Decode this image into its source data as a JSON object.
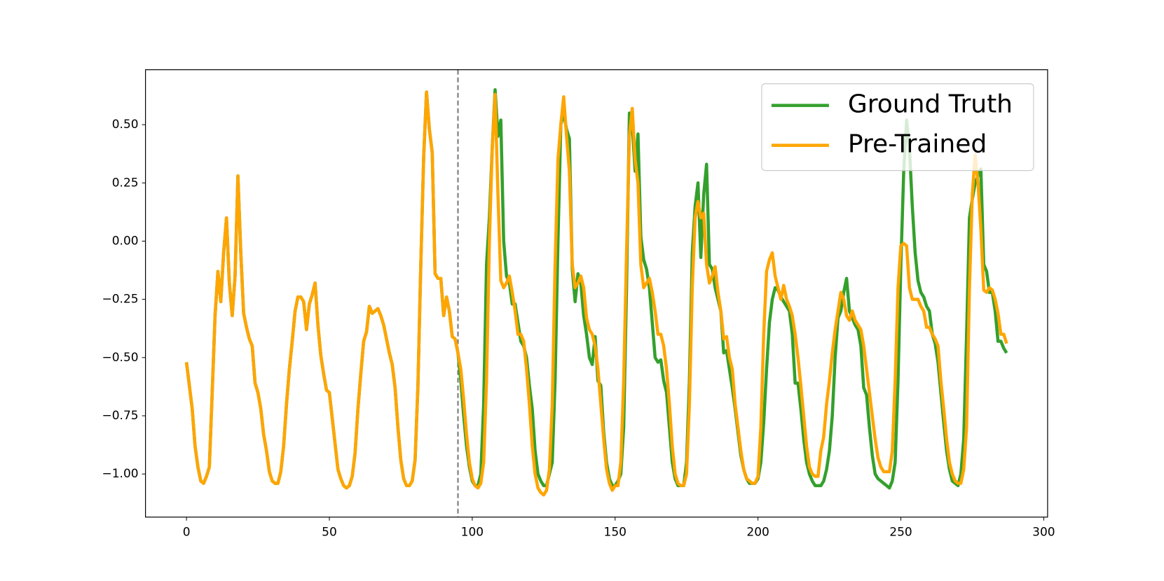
{
  "chart_data": {
    "type": "line",
    "x": [
      0,
      1,
      2,
      3,
      4,
      5,
      6,
      7,
      8,
      9,
      10,
      11,
      12,
      13,
      14,
      15,
      16,
      17,
      18,
      19,
      20,
      21,
      22,
      23,
      24,
      25,
      26,
      27,
      28,
      29,
      30,
      31,
      32,
      33,
      34,
      35,
      36,
      37,
      38,
      39,
      40,
      41,
      42,
      43,
      44,
      45,
      46,
      47,
      48,
      49,
      50,
      51,
      52,
      53,
      54,
      55,
      56,
      57,
      58,
      59,
      60,
      61,
      62,
      63,
      64,
      65,
      66,
      67,
      68,
      69,
      70,
      71,
      72,
      73,
      74,
      75,
      76,
      77,
      78,
      79,
      80,
      81,
      82,
      83,
      84,
      85,
      86,
      87,
      88,
      89,
      90,
      91,
      92,
      93,
      94,
      95,
      96,
      97,
      98,
      99,
      100,
      101,
      102,
      103,
      104,
      105,
      106,
      107,
      108,
      109,
      110,
      111,
      112,
      113,
      114,
      115,
      116,
      117,
      118,
      119,
      120,
      121,
      122,
      123,
      124,
      125,
      126,
      127,
      128,
      129,
      130,
      131,
      132,
      133,
      134,
      135,
      136,
      137,
      138,
      139,
      140,
      141,
      142,
      143,
      144,
      145,
      146,
      147,
      148,
      149,
      150,
      151,
      152,
      153,
      154,
      155,
      156,
      157,
      158,
      159,
      160,
      161,
      162,
      163,
      164,
      165,
      166,
      167,
      168,
      169,
      170,
      171,
      172,
      173,
      174,
      175,
      176,
      177,
      178,
      179,
      180,
      181,
      182,
      183,
      184,
      185,
      186,
      187,
      188,
      189,
      190,
      191,
      192,
      193,
      194,
      195,
      196,
      197,
      198,
      199,
      200,
      201,
      202,
      203,
      204,
      205,
      206,
      207,
      208,
      209,
      210,
      211,
      212,
      213,
      214,
      215,
      216,
      217,
      218,
      219,
      220,
      221,
      222,
      223,
      224,
      225,
      226,
      227,
      228,
      229,
      230,
      231,
      232,
      233,
      234,
      235,
      236,
      237,
      238,
      239,
      240,
      241,
      242,
      243,
      244,
      245,
      246,
      247,
      248,
      249,
      250,
      251,
      252,
      253,
      254,
      255,
      256,
      257,
      258,
      259,
      260,
      261,
      262,
      263,
      264,
      265,
      266,
      267,
      268,
      269,
      270,
      271,
      272,
      273,
      274,
      275,
      276,
      277,
      278,
      279,
      280,
      281,
      282,
      283,
      284,
      285,
      286,
      287
    ],
    "series": [
      {
        "name": "Ground Truth",
        "color": "#33a02c",
        "values": [
          -0.52,
          -0.62,
          -0.72,
          -0.88,
          -0.97,
          -1.03,
          -1.04,
          -1.01,
          -0.97,
          -0.65,
          -0.32,
          -0.13,
          -0.26,
          -0.05,
          0.1,
          -0.18,
          -0.32,
          -0.15,
          0.28,
          -0.05,
          -0.31,
          -0.37,
          -0.42,
          -0.45,
          -0.61,
          -0.65,
          -0.72,
          -0.83,
          -0.9,
          -0.99,
          -1.03,
          -1.04,
          -1.04,
          -0.99,
          -0.88,
          -0.7,
          -0.55,
          -0.43,
          -0.3,
          -0.24,
          -0.24,
          -0.26,
          -0.38,
          -0.27,
          -0.23,
          -0.18,
          -0.36,
          -0.49,
          -0.57,
          -0.64,
          -0.65,
          -0.76,
          -0.87,
          -0.98,
          -1.02,
          -1.05,
          -1.06,
          -1.05,
          -1.01,
          -0.91,
          -0.72,
          -0.57,
          -0.43,
          -0.39,
          -0.28,
          -0.31,
          -0.3,
          -0.29,
          -0.32,
          -0.36,
          -0.42,
          -0.48,
          -0.53,
          -0.63,
          -0.8,
          -0.94,
          -1.02,
          -1.05,
          -1.05,
          -1.03,
          -0.94,
          -0.62,
          -0.1,
          0.36,
          0.64,
          0.48,
          0.38,
          -0.14,
          -0.16,
          -0.16,
          -0.32,
          -0.24,
          -0.3,
          -0.41,
          -0.42,
          -0.48,
          -0.6,
          -0.75,
          -0.88,
          -0.97,
          -1.03,
          -1.05,
          -1.05,
          -1.0,
          -0.7,
          -0.1,
          0.1,
          0.4,
          0.65,
          0.45,
          0.52,
          0.0,
          -0.15,
          -0.18,
          -0.27,
          -0.27,
          -0.35,
          -0.43,
          -0.45,
          -0.5,
          -0.62,
          -0.72,
          -0.9,
          -1.0,
          -1.03,
          -1.05,
          -1.05,
          -1.0,
          -0.95,
          -0.6,
          0.0,
          0.5,
          0.55,
          0.48,
          0.44,
          -0.12,
          -0.26,
          -0.14,
          -0.18,
          -0.32,
          -0.4,
          -0.5,
          -0.53,
          -0.41,
          -0.6,
          -0.62,
          -0.82,
          -0.95,
          -1.02,
          -1.05,
          -1.05,
          -1.03,
          -1.0,
          -0.8,
          -0.2,
          0.55,
          0.5,
          0.3,
          0.46,
          0.02,
          -0.08,
          -0.12,
          -0.2,
          -0.35,
          -0.5,
          -0.52,
          -0.51,
          -0.6,
          -0.65,
          -0.8,
          -0.95,
          -1.02,
          -1.05,
          -1.05,
          -1.05,
          -0.95,
          -0.6,
          -0.05,
          0.15,
          0.25,
          -0.07,
          0.2,
          0.33,
          -0.1,
          -0.12,
          -0.2,
          -0.25,
          -0.3,
          -0.48,
          -0.47,
          -0.55,
          -0.63,
          -0.72,
          -0.82,
          -0.92,
          -0.98,
          -1.02,
          -1.04,
          -1.04,
          -1.04,
          -1.02,
          -0.95,
          -0.78,
          -0.55,
          -0.35,
          -0.25,
          -0.2,
          -0.21,
          -0.24,
          -0.26,
          -0.28,
          -0.3,
          -0.4,
          -0.61,
          -0.61,
          -0.72,
          -0.85,
          -0.95,
          -1.0,
          -1.03,
          -1.05,
          -1.05,
          -1.05,
          -1.03,
          -0.98,
          -0.9,
          -0.75,
          -0.5,
          -0.33,
          -0.3,
          -0.22,
          -0.16,
          -0.3,
          -0.33,
          -0.36,
          -0.38,
          -0.45,
          -0.63,
          -0.66,
          -0.8,
          -0.92,
          -1.0,
          -1.02,
          -1.03,
          -1.04,
          -1.05,
          -1.06,
          -1.03,
          -0.95,
          -0.6,
          -0.1,
          0.3,
          0.52,
          0.4,
          0.15,
          -0.05,
          -0.17,
          -0.22,
          -0.24,
          -0.28,
          -0.3,
          -0.4,
          -0.44,
          -0.52,
          -0.65,
          -0.78,
          -0.9,
          -0.98,
          -1.03,
          -1.04,
          -1.05,
          -1.0,
          -0.85,
          -0.4,
          0.1,
          0.18,
          0.25,
          0.28,
          0.31,
          -0.1,
          -0.13,
          -0.22,
          -0.22,
          -0.3,
          -0.43,
          -0.43,
          -0.46,
          -0.48
        ]
      },
      {
        "name": "Pre-Trained",
        "color": "#ffa500",
        "values": [
          -0.52,
          -0.62,
          -0.72,
          -0.88,
          -0.97,
          -1.03,
          -1.04,
          -1.01,
          -0.97,
          -0.65,
          -0.32,
          -0.13,
          -0.26,
          -0.05,
          0.1,
          -0.18,
          -0.32,
          -0.15,
          0.28,
          -0.05,
          -0.31,
          -0.37,
          -0.42,
          -0.45,
          -0.61,
          -0.65,
          -0.72,
          -0.83,
          -0.9,
          -0.99,
          -1.03,
          -1.04,
          -1.04,
          -0.99,
          -0.88,
          -0.7,
          -0.55,
          -0.43,
          -0.3,
          -0.24,
          -0.24,
          -0.26,
          -0.38,
          -0.27,
          -0.23,
          -0.18,
          -0.36,
          -0.49,
          -0.57,
          -0.64,
          -0.65,
          -0.76,
          -0.87,
          -0.98,
          -1.02,
          -1.05,
          -1.06,
          -1.05,
          -1.01,
          -0.91,
          -0.72,
          -0.57,
          -0.43,
          -0.39,
          -0.28,
          -0.31,
          -0.3,
          -0.29,
          -0.32,
          -0.36,
          -0.42,
          -0.48,
          -0.53,
          -0.63,
          -0.8,
          -0.94,
          -1.02,
          -1.05,
          -1.05,
          -1.03,
          -0.94,
          -0.62,
          -0.1,
          0.36,
          0.64,
          0.48,
          0.38,
          -0.14,
          -0.16,
          -0.16,
          -0.32,
          -0.24,
          -0.3,
          -0.41,
          -0.42,
          -0.48,
          -0.55,
          -0.68,
          -0.83,
          -0.95,
          -1.02,
          -1.05,
          -1.06,
          -1.04,
          -0.95,
          -0.6,
          0.0,
          0.4,
          0.63,
          0.2,
          -0.17,
          -0.2,
          -0.18,
          -0.15,
          -0.22,
          -0.3,
          -0.4,
          -0.4,
          -0.43,
          -0.55,
          -0.7,
          -0.88,
          -1.0,
          -1.06,
          -1.08,
          -1.09,
          -1.07,
          -0.98,
          -0.7,
          -0.1,
          0.35,
          0.5,
          0.62,
          0.45,
          0.3,
          -0.1,
          -0.2,
          -0.18,
          -0.15,
          -0.2,
          -0.33,
          -0.38,
          -0.4,
          -0.45,
          -0.55,
          -0.7,
          -0.85,
          -0.98,
          -1.04,
          -1.07,
          -1.05,
          -1.05,
          -0.95,
          -0.6,
          -0.05,
          0.45,
          0.57,
          0.35,
          0.25,
          -0.1,
          -0.2,
          -0.18,
          -0.16,
          -0.22,
          -0.3,
          -0.4,
          -0.4,
          -0.45,
          -0.55,
          -0.7,
          -0.88,
          -1.0,
          -1.04,
          -1.05,
          -1.05,
          -1.0,
          -0.7,
          -0.2,
          0.1,
          0.17,
          0.1,
          0.12,
          -0.1,
          -0.18,
          -0.15,
          -0.11,
          -0.22,
          -0.3,
          -0.42,
          -0.41,
          -0.5,
          -0.55,
          -0.7,
          -0.8,
          -0.9,
          -0.98,
          -1.02,
          -1.03,
          -1.04,
          -1.04,
          -1.01,
          -0.8,
          -0.4,
          -0.13,
          -0.08,
          -0.05,
          -0.15,
          -0.2,
          -0.25,
          -0.19,
          -0.25,
          -0.28,
          -0.32,
          -0.4,
          -0.5,
          -0.62,
          -0.75,
          -0.88,
          -0.97,
          -1.0,
          -1.01,
          -1.01,
          -0.9,
          -0.84,
          -0.7,
          -0.6,
          -0.48,
          -0.38,
          -0.3,
          -0.22,
          -0.25,
          -0.32,
          -0.34,
          -0.3,
          -0.34,
          -0.36,
          -0.38,
          -0.45,
          -0.55,
          -0.65,
          -0.75,
          -0.85,
          -0.93,
          -0.97,
          -0.99,
          -0.99,
          -0.99,
          -0.9,
          -0.6,
          -0.2,
          -0.02,
          -0.01,
          -0.02,
          -0.2,
          -0.25,
          -0.25,
          -0.25,
          -0.28,
          -0.3,
          -0.37,
          -0.37,
          -0.4,
          -0.42,
          -0.45,
          -0.6,
          -0.72,
          -0.85,
          -0.95,
          -1.0,
          -1.03,
          -1.04,
          -1.04,
          -0.98,
          -0.8,
          -0.2,
          0.2,
          0.37,
          0.25,
          0.05,
          -0.21,
          -0.22,
          -0.2,
          -0.21,
          -0.25,
          -0.31,
          -0.4,
          -0.4,
          -0.44
        ]
      }
    ],
    "xlim": [
      -14.35,
      301.35
    ],
    "xticks": [
      0,
      50,
      100,
      150,
      200,
      250,
      300
    ],
    "ylim": [
      -1.185,
      0.736
    ],
    "yticks": [
      {
        "value": -1.0,
        "label": "−1.00"
      },
      {
        "value": -0.75,
        "label": "−0.75"
      },
      {
        "value": -0.5,
        "label": "−0.50"
      },
      {
        "value": -0.25,
        "label": "−0.25"
      },
      {
        "value": 0.0,
        "label": "0.00"
      },
      {
        "value": 0.25,
        "label": "0.25"
      },
      {
        "value": 0.5,
        "label": "0.50"
      }
    ],
    "vline_x": 95,
    "vline_color": "#808080",
    "grid": false,
    "legend": "upper right"
  }
}
